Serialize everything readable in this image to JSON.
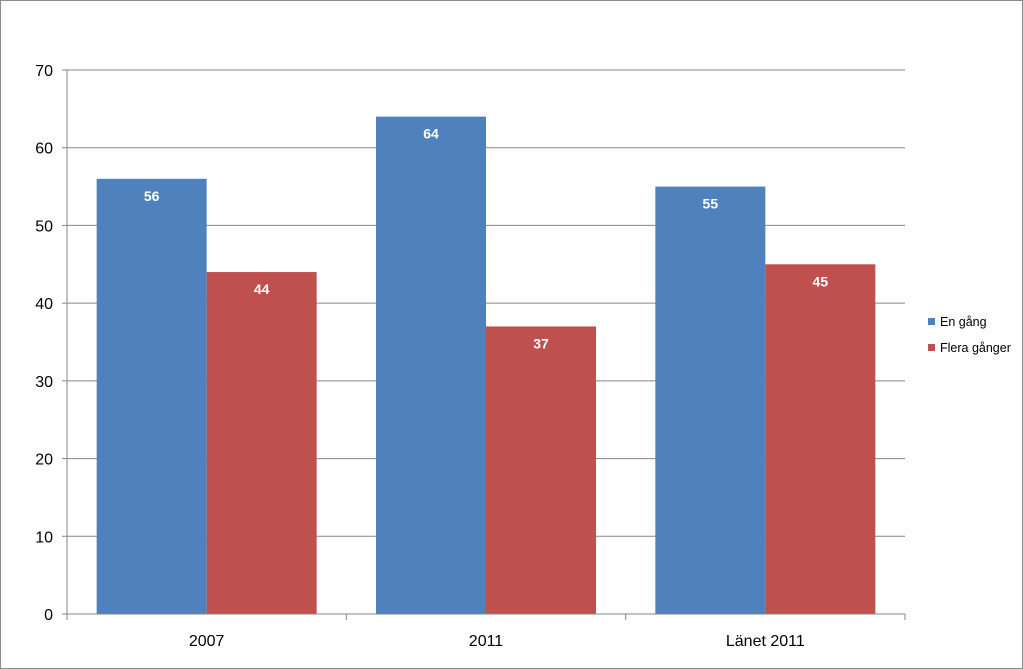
{
  "chart_data": {
    "type": "bar",
    "categories": [
      "2007",
      "2011",
      "Länet 2011"
    ],
    "series": [
      {
        "name": "En gång",
        "values": [
          56,
          64,
          55
        ],
        "color": "#4f81bd"
      },
      {
        "name": "Flera gånger",
        "values": [
          44,
          37,
          45
        ],
        "color": "#c0504d"
      }
    ],
    "title": "",
    "xlabel": "",
    "ylabel": "",
    "ylim": [
      0,
      70
    ],
    "yticks": [
      "0",
      "10",
      "20",
      "30",
      "40",
      "50",
      "60",
      "70"
    ],
    "grid": true,
    "legend_position": "right",
    "data_labels": true
  }
}
